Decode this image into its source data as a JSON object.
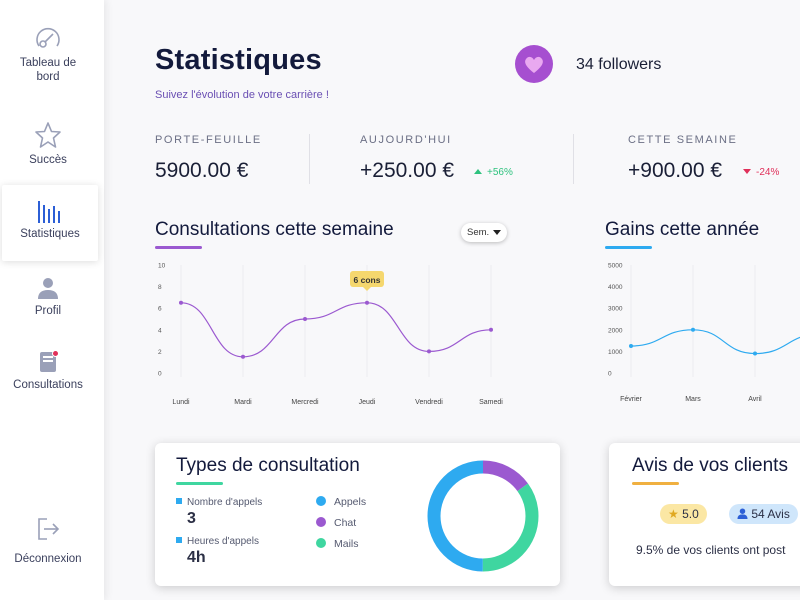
{
  "sidebar": {
    "items": [
      {
        "label": "Tableau de bord",
        "icon": "dashboard-gauge-icon"
      },
      {
        "label": "Succès",
        "icon": "star-icon"
      },
      {
        "label": "Statistiques",
        "icon": "bar-chart-icon"
      },
      {
        "label": "Profil",
        "icon": "user-icon"
      },
      {
        "label": "Consultations",
        "icon": "book-icon"
      }
    ],
    "logout_label": "Déconnexion"
  },
  "header": {
    "title": "Statistiques",
    "subtitle": "Suivez l'évolution de votre carrière !",
    "followers": "34 followers"
  },
  "stats": [
    {
      "label": "PORTE-FEUILLE",
      "value": "5900.00 €",
      "change": ""
    },
    {
      "label": "AUJOURD'HUI",
      "value": "+250.00 €",
      "change": "+56%",
      "trend": "up"
    },
    {
      "label": "CETTE SEMAINE",
      "value": "+900.00 €",
      "change": "-24%",
      "trend": "down"
    }
  ],
  "colors": {
    "accent_purple": "#9b59d0",
    "accent_blue": "#2eaaf0",
    "accent_green": "#3fd6a0",
    "positive": "#2ec27e",
    "negative": "#e0305a",
    "star_yellow": "#f5d76e"
  },
  "consultations_chart": {
    "title": "Consultations cette semaine",
    "period_select": "Sem.",
    "tooltip": "6 cons"
  },
  "gains_chart": {
    "title": "Gains cette année"
  },
  "chart_data": [
    {
      "type": "line",
      "title": "Consultations cette semaine",
      "categories": [
        "Lundi",
        "Mardi",
        "Mercredi",
        "Jeudi",
        "Vendredi",
        "Samedi"
      ],
      "values": [
        6.5,
        1.5,
        5,
        6.5,
        2,
        4
      ],
      "ylim": [
        0,
        10
      ],
      "yticks": [
        0,
        2,
        4,
        6,
        8,
        10
      ],
      "highlight": {
        "category": "Jeudi",
        "label": "6 cons"
      }
    },
    {
      "type": "line",
      "title": "Gains cette année",
      "categories": [
        "Février",
        "Mars",
        "Avril"
      ],
      "values": [
        1250,
        2000,
        900
      ],
      "ylim": [
        0,
        5000
      ],
      "yticks": [
        0,
        1000,
        2000,
        3000,
        4000,
        5000
      ]
    }
  ],
  "types_card": {
    "title": "Types de consultation",
    "metrics": [
      {
        "label": "Nombre d'appels",
        "value": "3"
      },
      {
        "label": "Heures d'appels",
        "value": "4h"
      }
    ],
    "legend": [
      {
        "label": "Appels",
        "color": "#2eaaf0",
        "share": 0.5
      },
      {
        "label": "Chat",
        "color": "#9b59d0",
        "share": 0.15
      },
      {
        "label": "Mails",
        "color": "#3fd6a0",
        "share": 0.35
      }
    ]
  },
  "reviews_card": {
    "title": "Avis de vos clients",
    "rating": "5.0",
    "count": "54 Avis",
    "text": "9.5% de vos clients ont post"
  }
}
